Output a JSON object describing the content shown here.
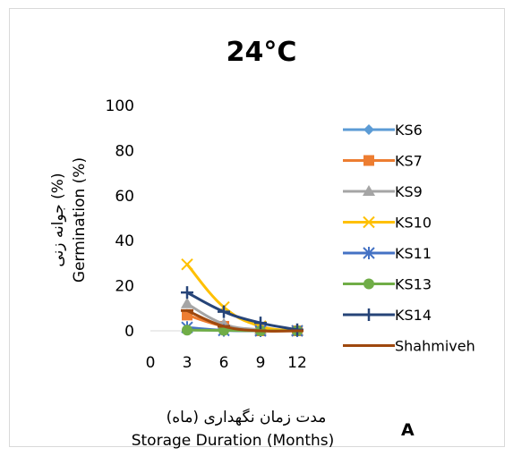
{
  "chart_data": {
    "type": "line",
    "title": "24°C",
    "panel_label": "A",
    "xlabel": [
      "مدت زمان نگهداری (ماه)",
      "Storage Duration (Months)"
    ],
    "ylabel": [
      "جوانه زنی (%)",
      "Germination (%)"
    ],
    "x_ticks": [
      "0",
      "3",
      "6",
      "9",
      "12"
    ],
    "y_ticks": [
      "0",
      "20",
      "40",
      "60",
      "80",
      "100"
    ],
    "xlim": [
      0,
      12
    ],
    "ylim": [
      0,
      100
    ],
    "grid": false,
    "legend_position": "right",
    "x": [
      3,
      6,
      9,
      12
    ],
    "series": [
      {
        "name": "KS6",
        "values": [
          0.5,
          0.2,
          0,
          0
        ],
        "color": "#5B9BD5",
        "marker": "diamond"
      },
      {
        "name": "KS7",
        "values": [
          7,
          2,
          0,
          0
        ],
        "color": "#ED7D31",
        "marker": "square"
      },
      {
        "name": "KS9",
        "values": [
          12,
          3,
          0.5,
          0
        ],
        "color": "#A5A5A5",
        "marker": "triangle"
      },
      {
        "name": "KS10",
        "values": [
          29.5,
          10.5,
          2,
          0
        ],
        "color": "#FFC000",
        "marker": "x"
      },
      {
        "name": "KS11",
        "values": [
          1.5,
          0.2,
          0,
          0
        ],
        "color": "#4472C4",
        "marker": "asterisk"
      },
      {
        "name": "KS13",
        "values": [
          0.3,
          0.2,
          0,
          0
        ],
        "color": "#70AD47",
        "marker": "circle"
      },
      {
        "name": "KS14",
        "values": [
          17,
          8.5,
          3.5,
          0.5
        ],
        "color": "#264478",
        "marker": "plus"
      },
      {
        "name": "Shahmiveh",
        "values": [
          9,
          2,
          0,
          0
        ],
        "color": "#9E480E",
        "marker": "dash"
      }
    ]
  }
}
